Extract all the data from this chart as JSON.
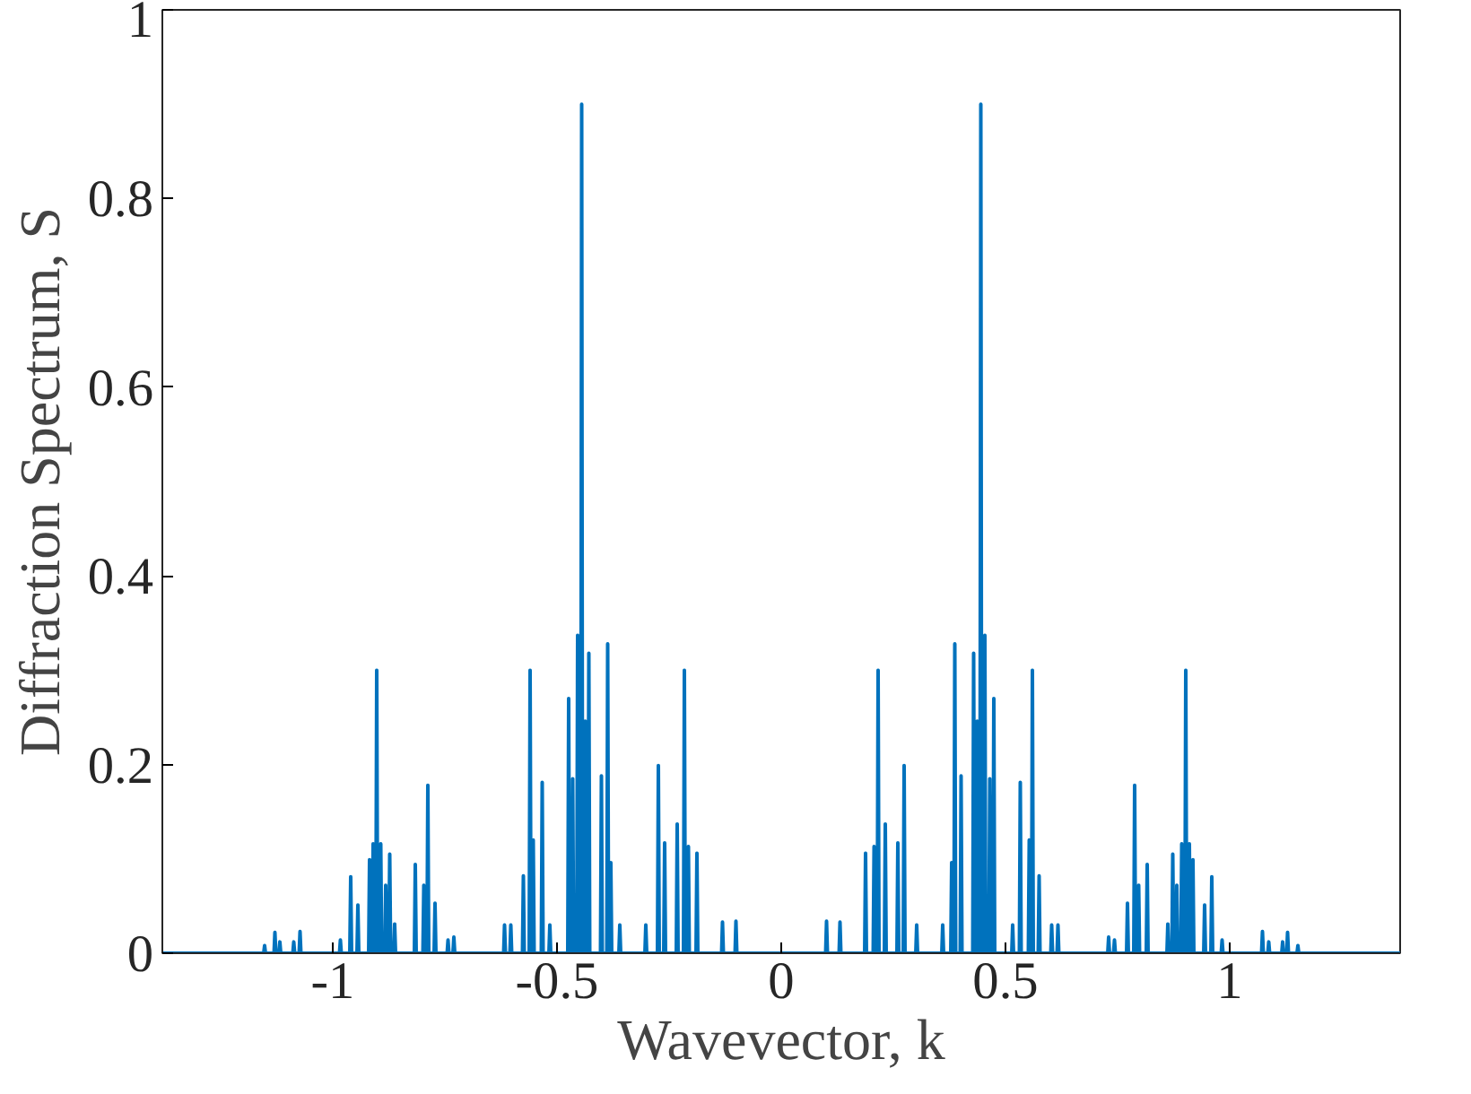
{
  "chart_data": {
    "type": "line",
    "xlabel": "Wavevector, k",
    "ylabel": "Diffraction Spectrum, S",
    "xlim": [
      -1.38,
      1.38
    ],
    "ylim": [
      0,
      1
    ],
    "xticks": [
      -1,
      -0.5,
      0,
      0.5,
      1
    ],
    "yticks": [
      0,
      0.2,
      0.4,
      0.6,
      0.8,
      1
    ],
    "series": [
      {
        "color": "#0072bd",
        "x": [
          -1.38,
          -1.154,
          -1.152,
          -1.15,
          -1.131,
          -1.129,
          -1.127,
          -1.12,
          -1.118,
          -1.116,
          -1.089,
          -1.087,
          -1.085,
          -1.075,
          -1.073,
          -1.071,
          -0.985,
          -0.983,
          -0.981,
          -0.962,
          -0.96,
          -0.958,
          -0.946,
          -0.944,
          -0.942,
          -0.92,
          -0.918,
          -0.916,
          -0.912,
          -0.91,
          -0.908,
          -0.904,
          -0.902,
          -0.9,
          -0.895,
          -0.893,
          -0.891,
          -0.884,
          -0.882,
          -0.88,
          -0.875,
          -0.873,
          -0.871,
          -0.864,
          -0.862,
          -0.86,
          -0.818,
          -0.816,
          -0.814,
          -0.799,
          -0.797,
          -0.795,
          -0.79,
          -0.788,
          -0.786,
          -0.774,
          -0.772,
          -0.77,
          -0.745,
          -0.743,
          -0.741,
          -0.732,
          -0.73,
          -0.728,
          -0.619,
          -0.617,
          -0.615,
          -0.605,
          -0.603,
          -0.601,
          -0.577,
          -0.575,
          -0.573,
          -0.562,
          -0.56,
          -0.558,
          -0.555,
          -0.553,
          -0.551,
          -0.535,
          -0.533,
          -0.531,
          -0.518,
          -0.516,
          -0.514,
          -0.476,
          -0.474,
          -0.472,
          -0.467,
          -0.465,
          -0.463,
          -0.456,
          -0.454,
          -0.452,
          -0.447,
          -0.445,
          -0.443,
          -0.439,
          -0.437,
          -0.435,
          -0.431,
          -0.429,
          -0.427,
          -0.403,
          -0.401,
          -0.399,
          -0.389,
          -0.387,
          -0.385,
          -0.382,
          -0.38,
          -0.378,
          -0.362,
          -0.36,
          -0.358,
          -0.304,
          -0.302,
          -0.3,
          -0.276,
          -0.274,
          -0.272,
          -0.262,
          -0.26,
          -0.258,
          -0.234,
          -0.232,
          -0.23,
          -0.218,
          -0.216,
          -0.214,
          -0.209,
          -0.207,
          -0.205,
          -0.19,
          -0.188,
          -0.186,
          -0.133,
          -0.131,
          -0.129,
          -0.103,
          -0.101,
          -0.099,
          0.099,
          0.101,
          0.103,
          0.129,
          0.131,
          0.133,
          0.186,
          0.188,
          0.19,
          0.205,
          0.207,
          0.209,
          0.214,
          0.216,
          0.218,
          0.23,
          0.232,
          0.234,
          0.258,
          0.26,
          0.262,
          0.272,
          0.274,
          0.276,
          0.3,
          0.302,
          0.304,
          0.358,
          0.36,
          0.362,
          0.378,
          0.38,
          0.382,
          0.385,
          0.387,
          0.389,
          0.399,
          0.401,
          0.403,
          0.427,
          0.429,
          0.431,
          0.435,
          0.437,
          0.439,
          0.443,
          0.445,
          0.447,
          0.452,
          0.454,
          0.456,
          0.463,
          0.465,
          0.467,
          0.472,
          0.474,
          0.476,
          0.514,
          0.516,
          0.518,
          0.531,
          0.533,
          0.535,
          0.551,
          0.553,
          0.555,
          0.558,
          0.56,
          0.562,
          0.573,
          0.575,
          0.577,
          0.601,
          0.603,
          0.605,
          0.615,
          0.617,
          0.619,
          0.728,
          0.73,
          0.732,
          0.741,
          0.743,
          0.745,
          0.77,
          0.772,
          0.774,
          0.786,
          0.788,
          0.79,
          0.795,
          0.797,
          0.799,
          0.814,
          0.816,
          0.818,
          0.86,
          0.862,
          0.864,
          0.871,
          0.873,
          0.875,
          0.88,
          0.882,
          0.884,
          0.891,
          0.893,
          0.895,
          0.9,
          0.902,
          0.904,
          0.908,
          0.91,
          0.912,
          0.916,
          0.918,
          0.92,
          0.942,
          0.944,
          0.946,
          0.958,
          0.96,
          0.962,
          0.981,
          0.983,
          0.985,
          1.071,
          1.073,
          1.075,
          1.085,
          1.087,
          1.089,
          1.116,
          1.118,
          1.12,
          1.127,
          1.129,
          1.131,
          1.15,
          1.152,
          1.154,
          1.38
        ],
        "values": [
          0,
          0,
          0.008,
          0,
          0,
          0.022,
          0,
          0,
          0.012,
          0,
          0,
          0.012,
          0,
          0,
          0.023,
          0,
          0,
          0.014,
          0,
          0,
          0.081,
          0,
          0,
          0.051,
          0,
          0,
          0.099,
          0,
          0,
          0.116,
          0,
          0,
          0.3,
          0,
          0,
          0.116,
          0,
          0,
          0.072,
          0,
          0,
          0.105,
          0,
          0,
          0.031,
          0,
          0,
          0.094,
          0,
          0,
          0.072,
          0,
          0,
          0.178,
          0,
          0,
          0.053,
          0,
          0,
          0.014,
          0,
          0,
          0.017,
          0,
          0,
          0.03,
          0,
          0,
          0.03,
          0,
          0,
          0.082,
          0,
          0,
          0.3,
          0,
          0,
          0.12,
          0,
          0,
          0.181,
          0,
          0,
          0.03,
          0,
          0,
          0.27,
          0,
          0,
          0.185,
          0,
          0,
          0.337,
          0,
          0,
          0.9,
          0,
          0,
          0.246,
          0,
          0,
          0.318,
          0,
          0,
          0.188,
          0,
          0,
          0.328,
          0,
          0,
          0.096,
          0,
          0,
          0.03,
          0,
          0,
          0.03,
          0,
          0,
          0.199,
          0,
          0,
          0.117,
          0,
          0,
          0.137,
          0,
          0,
          0.3,
          0,
          0,
          0.113,
          0,
          0,
          0.106,
          0,
          0,
          0.033,
          0,
          0,
          0.034,
          0,
          0,
          0.034,
          0,
          0,
          0.033,
          0,
          0,
          0.106,
          0,
          0,
          0.113,
          0,
          0,
          0.3,
          0,
          0,
          0.137,
          0,
          0,
          0.117,
          0,
          0,
          0.199,
          0,
          0,
          0.03,
          0,
          0,
          0.03,
          0,
          0,
          0.096,
          0,
          0,
          0.328,
          0,
          0,
          0.188,
          0,
          0,
          0.318,
          0,
          0,
          0.246,
          0,
          0,
          0.9,
          0,
          0,
          0.337,
          0,
          0,
          0.185,
          0,
          0,
          0.27,
          0,
          0,
          0.03,
          0,
          0,
          0.181,
          0,
          0,
          0.12,
          0,
          0,
          0.3,
          0,
          0,
          0.082,
          0,
          0,
          0.03,
          0,
          0,
          0.03,
          0,
          0,
          0.017,
          0,
          0,
          0.014,
          0,
          0,
          0.053,
          0,
          0,
          0.178,
          0,
          0,
          0.072,
          0,
          0,
          0.094,
          0,
          0,
          0.031,
          0,
          0,
          0.105,
          0,
          0,
          0.072,
          0,
          0,
          0.116,
          0,
          0,
          0.3,
          0,
          0,
          0.116,
          0,
          0,
          0.099,
          0,
          0,
          0.051,
          0,
          0,
          0.081,
          0,
          0,
          0.014,
          0,
          0,
          0.023,
          0,
          0,
          0.012,
          0,
          0,
          0.012,
          0,
          0,
          0.022,
          0,
          0,
          0.008,
          0,
          0
        ]
      }
    ]
  }
}
